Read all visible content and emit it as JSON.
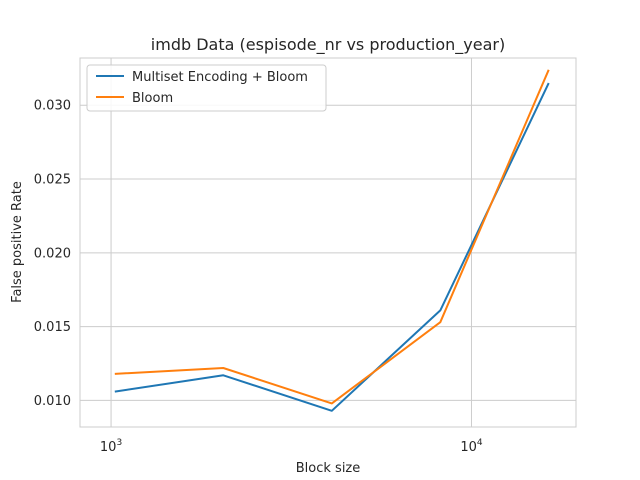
{
  "chart_data": {
    "type": "line",
    "title": "imdb Data (espisode_nr vs production_year)",
    "xlabel": "Block size",
    "ylabel": "False positive Rate",
    "xscale": "log",
    "xlim": [
      820,
      19500
    ],
    "ylim": [
      0.0082,
      0.0332
    ],
    "grid": true,
    "legend_position": "top-left",
    "x_ticks": [
      {
        "value": 1000,
        "base": "10",
        "exp": "3"
      },
      {
        "value": 10000,
        "base": "10",
        "exp": "4"
      }
    ],
    "y_ticks": [
      {
        "value": 0.01,
        "label": "0.010"
      },
      {
        "value": 0.015,
        "label": "0.015"
      },
      {
        "value": 0.02,
        "label": "0.020"
      },
      {
        "value": 0.025,
        "label": "0.025"
      },
      {
        "value": 0.03,
        "label": "0.030"
      }
    ],
    "series": [
      {
        "name": "Multiset Encoding + Bloom",
        "color": "#1f77b4",
        "x": [
          1024,
          2048,
          4096,
          8192,
          16384
        ],
        "y": [
          0.0106,
          0.0117,
          0.0093,
          0.0161,
          0.0315
        ]
      },
      {
        "name": "Bloom",
        "color": "#ff7f0e",
        "x": [
          1024,
          2048,
          4096,
          8192,
          16384
        ],
        "y": [
          0.0118,
          0.0122,
          0.0098,
          0.0153,
          0.0324
        ]
      }
    ]
  }
}
